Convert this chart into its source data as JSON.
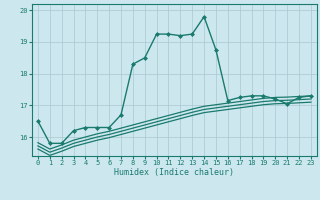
{
  "xlabel": "Humidex (Indice chaleur)",
  "xlim": [
    -0.5,
    23.5
  ],
  "ylim": [
    15.4,
    20.2
  ],
  "yticks": [
    16,
    17,
    18,
    19,
    20
  ],
  "xticks": [
    0,
    1,
    2,
    3,
    4,
    5,
    6,
    7,
    8,
    9,
    10,
    11,
    12,
    13,
    14,
    15,
    16,
    17,
    18,
    19,
    20,
    21,
    22,
    23
  ],
  "background_color": "#cce8ee",
  "grid_color": "#aac8d0",
  "line_color": "#1a7a6e",
  "series": [
    {
      "x": [
        0,
        1,
        2,
        3,
        4,
        5,
        6,
        7,
        8,
        9,
        10,
        11,
        12,
        13,
        14,
        15,
        16,
        17,
        18,
        19,
        20,
        21,
        22,
        23
      ],
      "y": [
        16.5,
        15.8,
        15.8,
        16.2,
        16.3,
        16.3,
        16.3,
        16.7,
        18.3,
        18.5,
        19.25,
        19.25,
        19.2,
        19.25,
        19.8,
        18.75,
        17.15,
        17.25,
        17.3,
        17.3,
        17.2,
        17.05,
        17.25,
        17.3
      ],
      "marker": "D",
      "markersize": 2.0,
      "linewidth": 1.0,
      "linestyle": "-"
    },
    {
      "x": [
        0,
        1,
        2,
        3,
        4,
        5,
        6,
        7,
        8,
        9,
        10,
        11,
        12,
        13,
        14,
        15,
        16,
        17,
        18,
        19,
        20,
        21,
        22,
        23
      ],
      "y": [
        15.82,
        15.62,
        15.75,
        15.9,
        16.0,
        16.1,
        16.18,
        16.28,
        16.38,
        16.48,
        16.58,
        16.68,
        16.78,
        16.88,
        16.97,
        17.02,
        17.07,
        17.12,
        17.17,
        17.22,
        17.25,
        17.26,
        17.28,
        17.3
      ],
      "marker": null,
      "markersize": 0,
      "linewidth": 0.9,
      "linestyle": "-"
    },
    {
      "x": [
        0,
        1,
        2,
        3,
        4,
        5,
        6,
        7,
        8,
        9,
        10,
        11,
        12,
        13,
        14,
        15,
        16,
        17,
        18,
        19,
        20,
        21,
        22,
        23
      ],
      "y": [
        15.72,
        15.52,
        15.65,
        15.8,
        15.9,
        16.0,
        16.08,
        16.18,
        16.28,
        16.38,
        16.48,
        16.58,
        16.68,
        16.78,
        16.87,
        16.92,
        16.97,
        17.02,
        17.07,
        17.12,
        17.15,
        17.16,
        17.18,
        17.2
      ],
      "marker": null,
      "markersize": 0,
      "linewidth": 0.9,
      "linestyle": "-"
    },
    {
      "x": [
        0,
        1,
        2,
        3,
        4,
        5,
        6,
        7,
        8,
        9,
        10,
        11,
        12,
        13,
        14,
        15,
        16,
        17,
        18,
        19,
        20,
        21,
        22,
        23
      ],
      "y": [
        15.62,
        15.42,
        15.55,
        15.7,
        15.8,
        15.9,
        15.98,
        16.08,
        16.18,
        16.28,
        16.38,
        16.48,
        16.58,
        16.68,
        16.77,
        16.82,
        16.87,
        16.92,
        16.97,
        17.02,
        17.05,
        17.06,
        17.08,
        17.1
      ],
      "marker": null,
      "markersize": 0,
      "linewidth": 0.9,
      "linestyle": "-"
    }
  ]
}
